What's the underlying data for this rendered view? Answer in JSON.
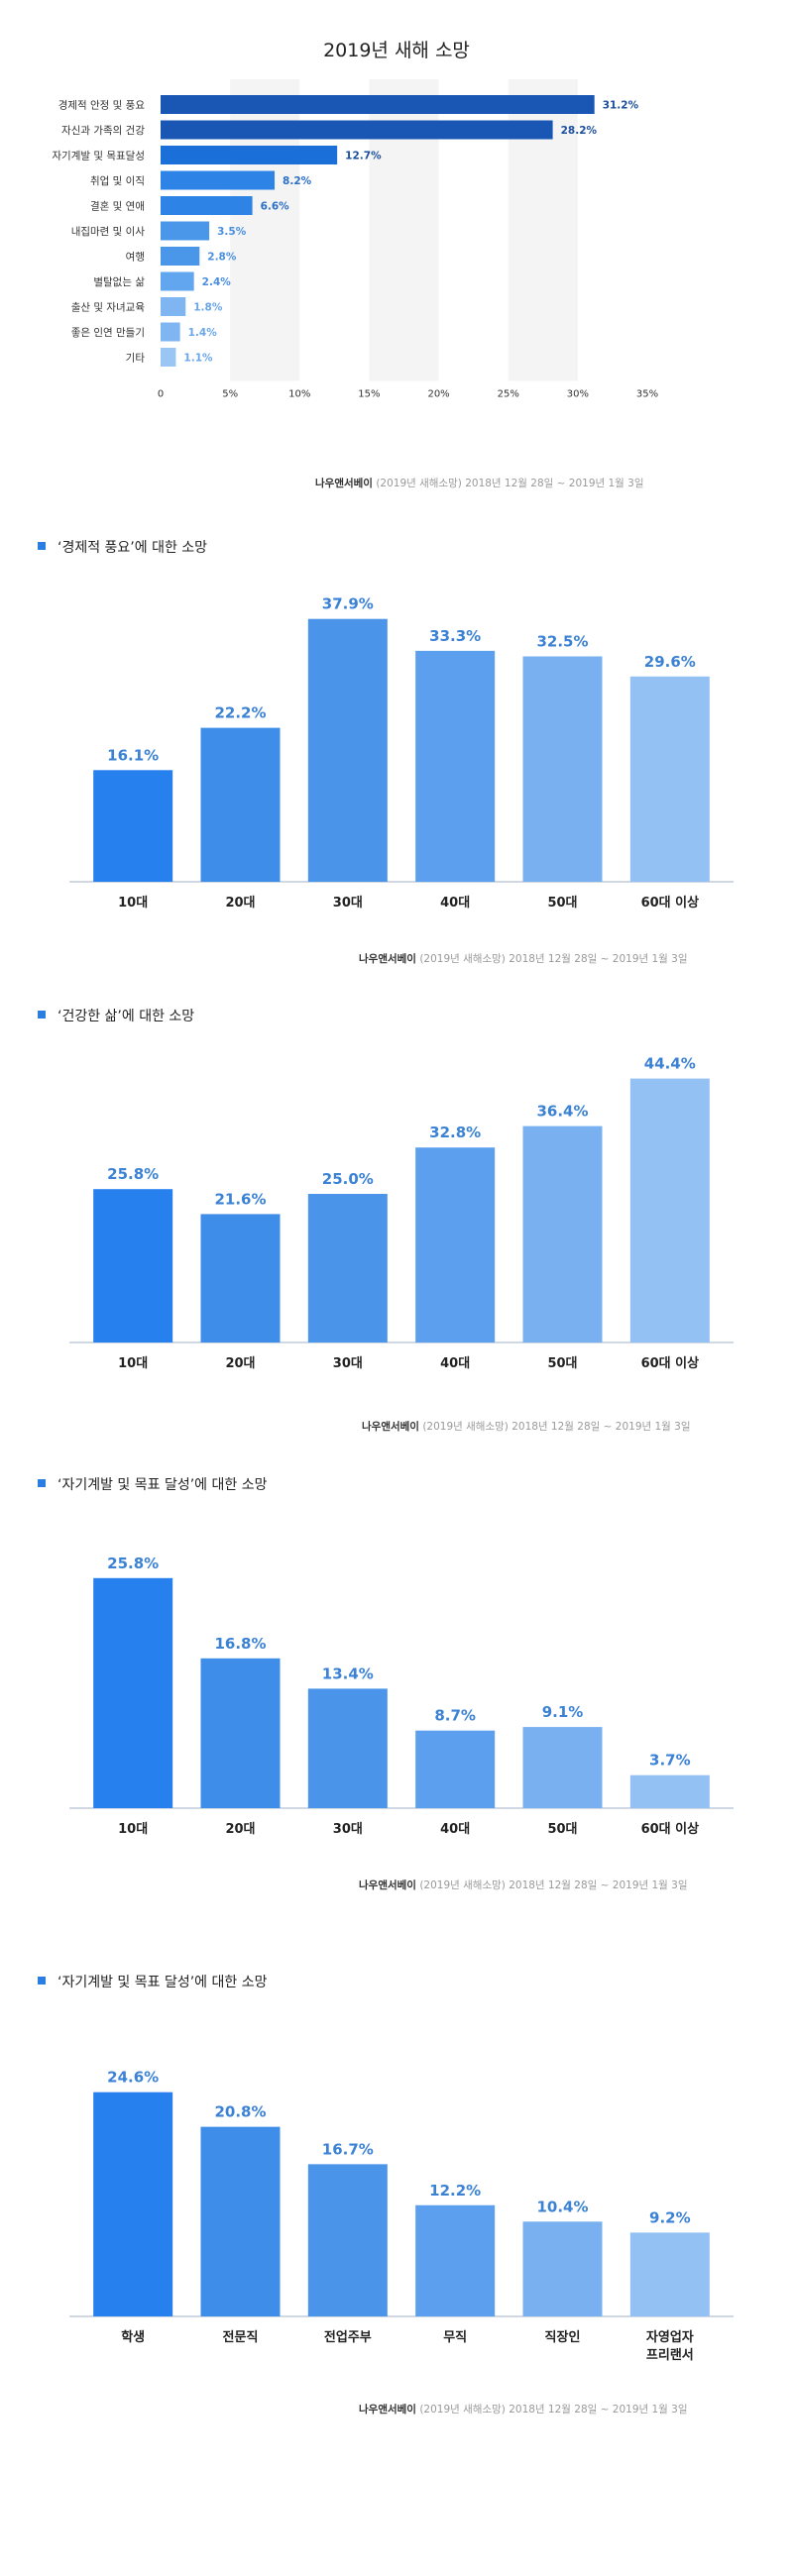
{
  "title": "2019년 새해 소망",
  "source_brand": "나우앤서베이",
  "source_detail": "(2019년 새해소망) 2018년 12월 28일 ~ 2019년 1월 3일",
  "chart_data": [
    {
      "type": "bar",
      "orientation": "horizontal",
      "title": "2019년 새해 소망",
      "categories": [
        "경제적 안정 및 풍요",
        "자신과 가족의 건강",
        "자기계발 및 목표달성",
        "취업 및 이직",
        "결혼 및 연애",
        "내집마련 및 이사",
        "여행",
        "별탈없는 삶",
        "출산 및 자녀교육",
        "좋은 인연 만들기",
        "기타"
      ],
      "values": [
        31.2,
        28.2,
        12.7,
        8.2,
        6.6,
        3.5,
        2.8,
        2.4,
        1.8,
        1.4,
        1.1
      ],
      "value_labels": [
        "31.2%",
        "28.2%",
        "12.7%",
        "8.2%",
        "6.6%",
        "3.5%",
        "2.8%",
        "2.4%",
        "1.8%",
        "1.4%",
        "1.1%"
      ],
      "xlim": [
        0,
        35
      ],
      "xticks": [
        "0",
        "5%",
        "10%",
        "15%",
        "20%",
        "25%",
        "30%",
        "35%"
      ],
      "bar_colors": [
        "#1a56b4",
        "#1a56b4",
        "#1a6fd8",
        "#2d83e6",
        "#2d83e6",
        "#4a97ea",
        "#4a97ea",
        "#62a6ef",
        "#7fb6f2",
        "#7fb6f2",
        "#9ac6f5"
      ],
      "label_colors": [
        "#1a4f9e",
        "#1a4f9e",
        "#1a4f9e",
        "#2a6fc8",
        "#2a6fc8",
        "#4a8fe0",
        "#4a8fe0",
        "#4a8fe0",
        "#6aa6ea",
        "#6aa6ea",
        "#6aa6ea"
      ]
    },
    {
      "type": "bar",
      "title": "‘경제적 풍요’에 대한 소망",
      "categories": [
        "10대",
        "20대",
        "30대",
        "40대",
        "50대",
        "60대 이상"
      ],
      "values": [
        16.1,
        22.2,
        37.9,
        33.3,
        32.5,
        29.6
      ],
      "value_labels": [
        "16.1%",
        "22.2%",
        "37.9%",
        "33.3%",
        "32.5%",
        "29.6%"
      ]
    },
    {
      "type": "bar",
      "title": "‘건강한 삶’에 대한 소망",
      "categories": [
        "10대",
        "20대",
        "30대",
        "40대",
        "50대",
        "60대 이상"
      ],
      "values": [
        25.8,
        21.6,
        25.0,
        32.8,
        36.4,
        44.4
      ],
      "value_labels": [
        "25.8%",
        "21.6%",
        "25.0%",
        "32.8%",
        "36.4%",
        "44.4%"
      ]
    },
    {
      "type": "bar",
      "title": "‘자기계발 및 목표 달성’에 대한 소망",
      "categories": [
        "10대",
        "20대",
        "30대",
        "40대",
        "50대",
        "60대 이상"
      ],
      "values": [
        25.8,
        16.8,
        13.4,
        8.7,
        9.1,
        3.7
      ],
      "value_labels": [
        "25.8%",
        "16.8%",
        "13.4%",
        "8.7%",
        "9.1%",
        "3.7%"
      ]
    },
    {
      "type": "bar",
      "title": "‘자기계발 및 목표 달성’에 대한 소망",
      "categories": [
        "학생",
        "전문직",
        "전업주부",
        "무직",
        "직장인",
        "자영업자\n프리랜서"
      ],
      "values": [
        24.6,
        20.8,
        16.7,
        12.2,
        10.4,
        9.2
      ],
      "value_labels": [
        "24.6%",
        "20.8%",
        "16.7%",
        "12.2%",
        "10.4%",
        "9.2%"
      ]
    }
  ],
  "colors": {
    "vbar_fills": [
      "#2680ee",
      "#3e8de9",
      "#4a94ea",
      "#5c9fee",
      "#78b0f0",
      "#94c1f4"
    ],
    "vbar_label": "#3b82d4",
    "grid_band": "#f4f4f4"
  }
}
